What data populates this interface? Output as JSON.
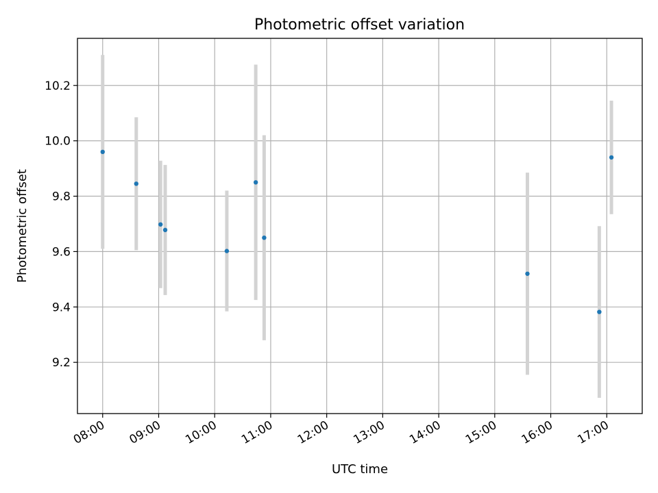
{
  "chart_data": {
    "type": "scatter",
    "title": "Photometric offset variation",
    "xlabel": "UTC time",
    "ylabel": "Photometric offset",
    "x_ticks": [
      "08:00",
      "09:00",
      "10:00",
      "11:00",
      "12:00",
      "13:00",
      "14:00",
      "15:00",
      "16:00",
      "17:00"
    ],
    "y_ticks": [
      "9.2",
      "9.4",
      "9.6",
      "9.8",
      "10.0",
      "10.2"
    ],
    "xlim": [
      "07:33",
      "17:38"
    ],
    "ylim": [
      9.015,
      10.37
    ],
    "grid": true,
    "series": [
      {
        "points": [
          {
            "x": "08:00",
            "y": 9.96,
            "err": 0.35
          },
          {
            "x": "08:36",
            "y": 9.845,
            "err": 0.24
          },
          {
            "x": "09:02",
            "y": 9.698,
            "err": 0.23
          },
          {
            "x": "09:07",
            "y": 9.678,
            "err": 0.235
          },
          {
            "x": "10:13",
            "y": 9.602,
            "err": 0.218
          },
          {
            "x": "10:44",
            "y": 9.85,
            "err": 0.425
          },
          {
            "x": "10:53",
            "y": 9.65,
            "err": 0.37
          },
          {
            "x": "15:35",
            "y": 9.52,
            "err": 0.365
          },
          {
            "x": "16:52",
            "y": 9.382,
            "err": 0.31
          },
          {
            "x": "17:05",
            "y": 9.94,
            "err": 0.205
          }
        ]
      }
    ],
    "colors": {
      "point": "#1f77b4",
      "errorbar": "#d3d3d3"
    }
  }
}
